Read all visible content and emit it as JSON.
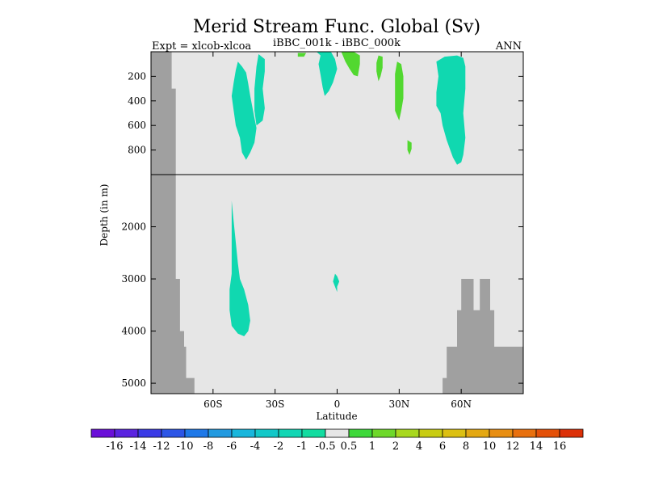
{
  "chart_data": {
    "type": "heatmap",
    "title": "Merid Stream Func. Global (Sv)",
    "subtitle_left": "Expt = xlcob-xlcoa",
    "subtitle_center": "iBBC_001k - iBBC_000k",
    "subtitle_right": "ANN",
    "xlabel": "Latitude",
    "ylabel": "Depth (in m)",
    "xlim": [
      -90,
      90
    ],
    "x_ticks": [
      {
        "value": -60,
        "label": "60S"
      },
      {
        "value": -30,
        "label": "30S"
      },
      {
        "value": 0,
        "label": "0"
      },
      {
        "value": 30,
        "label": "30N"
      },
      {
        "value": 60,
        "label": "60N"
      }
    ],
    "y_upper_range": [
      0,
      1000
    ],
    "y_lower_range": [
      1000,
      5200
    ],
    "y_ticks_upper": [
      200,
      400,
      600,
      800
    ],
    "y_ticks_lower": [
      2000,
      3000,
      4000,
      5000
    ],
    "colorbar": {
      "labels": [
        "-16",
        "-14",
        "-12",
        "-10",
        "-8",
        "-6",
        "-4",
        "-2",
        "-1",
        "-0.5",
        "0.5",
        "1",
        "2",
        "4",
        "6",
        "8",
        "10",
        "12",
        "14",
        "16"
      ],
      "colors": [
        "#6a0fd8",
        "#5a23e0",
        "#3a3ae6",
        "#2c55e6",
        "#1e78e8",
        "#229ae0",
        "#18b6dc",
        "#12c8c8",
        "#12d6b4",
        "#12dca0",
        "#e6e6e6",
        "#3ed83a",
        "#6ed82a",
        "#a8d81e",
        "#c8cc12",
        "#dcc012",
        "#e4a812",
        "#e88e12",
        "#e8700e",
        "#e45008",
        "#dc3008"
      ]
    },
    "colors": {
      "background": "#e6e6e6",
      "land": "#a0a0a0",
      "negative_1_to_0.5": "#10d8b0",
      "positive_0.5_to_1": "#52d830"
    },
    "regions": [
      {
        "label": "-1 to -0.5",
        "polygon": [
          [
            -48,
            80
          ],
          [
            -46,
            120
          ],
          [
            -44,
            170
          ],
          [
            -43,
            260
          ],
          [
            -42,
            360
          ],
          [
            -41,
            450
          ],
          [
            -40,
            540
          ],
          [
            -39,
            620
          ],
          [
            -40,
            740
          ],
          [
            -42,
            820
          ],
          [
            -44,
            880
          ],
          [
            -46,
            820
          ],
          [
            -47,
            700
          ],
          [
            -49,
            600
          ],
          [
            -50,
            480
          ],
          [
            -51,
            360
          ],
          [
            -50,
            250
          ],
          [
            -49,
            150
          ]
        ]
      },
      {
        "label": "-1 to -0.5",
        "polygon": [
          [
            -38,
            20
          ],
          [
            -35,
            60
          ],
          [
            -35,
            160
          ],
          [
            -36,
            300
          ],
          [
            -35,
            460
          ],
          [
            -36,
            560
          ],
          [
            -39,
            600
          ],
          [
            -40,
            480
          ],
          [
            -40,
            300
          ],
          [
            -39,
            120
          ]
        ]
      },
      {
        "label": "-1 to -0.5",
        "polygon": [
          [
            -51,
            1500
          ],
          [
            -50,
            1900
          ],
          [
            -49,
            2300
          ],
          [
            -48,
            2700
          ],
          [
            -47,
            3000
          ],
          [
            -45,
            3200
          ],
          [
            -43,
            3500
          ],
          [
            -42,
            3800
          ],
          [
            -43,
            4000
          ],
          [
            -45,
            4100
          ],
          [
            -48,
            4050
          ],
          [
            -51,
            3900
          ],
          [
            -52,
            3600
          ],
          [
            -52,
            3200
          ],
          [
            -51,
            2900
          ],
          [
            -51,
            2300
          ]
        ]
      },
      {
        "label": "-1 to -0.5",
        "polygon": [
          [
            -1,
            2900
          ],
          [
            0,
            2950
          ],
          [
            1,
            3050
          ],
          [
            0,
            3150
          ],
          [
            0,
            3250
          ],
          [
            -1,
            3150
          ],
          [
            -2,
            3050
          ]
        ]
      },
      {
        "label": "-1 to -0.5",
        "polygon": [
          [
            -10,
            0
          ],
          [
            -8,
            30
          ],
          [
            -9,
            100
          ],
          [
            -8,
            190
          ],
          [
            -7,
            290
          ],
          [
            -6,
            360
          ],
          [
            -4,
            320
          ],
          [
            -2,
            250
          ],
          [
            0,
            140
          ],
          [
            -1,
            60
          ],
          [
            -3,
            0
          ]
        ]
      },
      {
        "label": "-1 to -0.5",
        "polygon": [
          [
            48,
            80
          ],
          [
            52,
            40
          ],
          [
            58,
            30
          ],
          [
            61,
            50
          ],
          [
            62,
            120
          ],
          [
            62,
            300
          ],
          [
            61,
            500
          ],
          [
            62,
            700
          ],
          [
            61,
            840
          ],
          [
            60,
            900
          ],
          [
            58,
            920
          ],
          [
            56,
            860
          ],
          [
            53,
            720
          ],
          [
            51,
            600
          ],
          [
            50,
            500
          ],
          [
            48,
            440
          ],
          [
            48,
            330
          ],
          [
            49,
            200
          ]
        ]
      },
      {
        "label": "0.5 to 1",
        "polygon": [
          [
            -19,
            10
          ],
          [
            -15,
            10
          ],
          [
            -16,
            40
          ],
          [
            -19,
            40
          ]
        ]
      },
      {
        "label": "0.5 to 1",
        "polygon": [
          [
            2,
            0
          ],
          [
            8,
            0
          ],
          [
            11,
            30
          ],
          [
            11,
            100
          ],
          [
            10,
            200
          ],
          [
            8,
            190
          ],
          [
            6,
            140
          ],
          [
            4,
            80
          ]
        ]
      },
      {
        "label": "0.5 to 1",
        "polygon": [
          [
            20,
            30
          ],
          [
            22,
            40
          ],
          [
            22,
            130
          ],
          [
            21,
            200
          ],
          [
            20,
            240
          ],
          [
            19,
            160
          ],
          [
            19,
            90
          ]
        ]
      },
      {
        "label": "0.5 to 1",
        "polygon": [
          [
            29,
            80
          ],
          [
            31,
            100
          ],
          [
            32,
            200
          ],
          [
            32,
            380
          ],
          [
            31,
            480
          ],
          [
            30,
            560
          ],
          [
            28,
            480
          ],
          [
            28,
            330
          ],
          [
            28,
            180
          ]
        ]
      },
      {
        "label": "0.5 to 1",
        "polygon": [
          [
            34,
            720
          ],
          [
            36,
            740
          ],
          [
            36,
            790
          ],
          [
            35,
            840
          ],
          [
            34,
            800
          ]
        ]
      }
    ],
    "land_left": [
      [
        -90,
        0
      ],
      [
        -80,
        0
      ],
      [
        -80,
        300
      ],
      [
        -78,
        300
      ],
      [
        -78,
        1000
      ],
      [
        -78,
        3000
      ],
      [
        -76,
        3000
      ],
      [
        -76,
        4000
      ],
      [
        -74,
        4000
      ],
      [
        -74,
        4300
      ],
      [
        -73,
        4300
      ],
      [
        -73,
        4900
      ],
      [
        -69,
        4900
      ],
      [
        -69,
        5200
      ],
      [
        -90,
        5200
      ]
    ],
    "land_right": [
      [
        51,
        5200
      ],
      [
        51,
        4900
      ],
      [
        53,
        4900
      ],
      [
        53,
        4300
      ],
      [
        58,
        4300
      ],
      [
        58,
        3600
      ],
      [
        60,
        3600
      ],
      [
        60,
        3000
      ],
      [
        66,
        3000
      ],
      [
        66,
        3600
      ],
      [
        69,
        3600
      ],
      [
        69,
        3000
      ],
      [
        74,
        3000
      ],
      [
        74,
        3600
      ],
      [
        76,
        3600
      ],
      [
        76,
        4300
      ],
      [
        90,
        4300
      ],
      [
        90,
        5200
      ]
    ]
  }
}
